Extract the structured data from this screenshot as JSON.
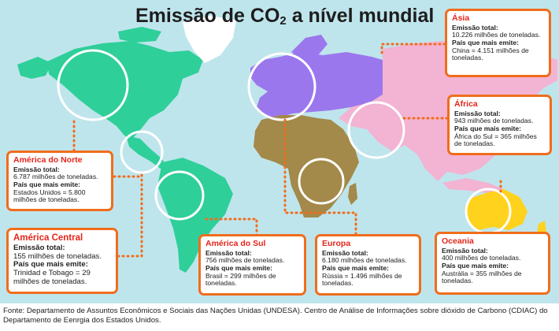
{
  "title": {
    "main": "Emissão de CO",
    "sub": "2",
    "rest": " a nível mundial"
  },
  "regions": {
    "asia": {
      "name": "Ásia",
      "total_label": "Emissão total:",
      "total_value": "10.226 milhões de toneladas.",
      "top_label": "País que mais emite:",
      "top_value": "China = 4.151 milhões de toneladas.",
      "color": "#f3b3d3"
    },
    "africa": {
      "name": "África",
      "total_label": "Emissão total:",
      "total_value": "943 milhões de toneladas.",
      "top_label": "País que mais emite:",
      "top_value": "África do Sul = 365 milhões de toneladas.",
      "color": "#a3894a"
    },
    "north_america": {
      "name": "América do Norte",
      "total_label": "Emissão total:",
      "total_value": "6.787 milhões de toneladas.",
      "top_label": "País que mais emite:",
      "top_value": "Estados Unidos = 5.800 milhões de toneladas.",
      "color": "#2fcf9a"
    },
    "central_america": {
      "name": "América Central",
      "total_label": "Emissão total:",
      "total_value": "155 milhões de toneladas.",
      "top_label": "País que mais emite:",
      "top_value": "Trinidad e Tobago = 29 milhões de toneladas.",
      "color": "#2fcf9a"
    },
    "south_america": {
      "name": "América do Sul",
      "total_label": "Emissão total:",
      "total_value": "756 milhões de toneladas.",
      "top_label": "País que mais emite:",
      "top_value": "Brasil = 299 milhões de toneladas.",
      "color": "#2fcf9a"
    },
    "europe": {
      "name": "Europa",
      "total_label": "Emissão total:",
      "total_value": "6.180 milhões de toneladas.",
      "top_label": "País que mais emite:",
      "top_value": "Rússia = 1.496 milhões de toneladas.",
      "color": "#9b77ee"
    },
    "oceania": {
      "name": "Oceania",
      "total_label": "Emissão total:",
      "total_value": "400 milhões de toneladas.",
      "top_label": "País que mais emite:",
      "top_value": "Austrália = 355 milhões de toneladas.",
      "color": "#ffd21e"
    }
  },
  "colors": {
    "ocean": "#bfe5ec",
    "box_border": "#f06d1c",
    "region_name": "#e4251a",
    "greenland": "#ffffff"
  },
  "footer": "Fonte: Departamento de Assuntos Econômicos e Sociais das Nações Unidas (UNDESA). Centro de Análise de Informações sobre dióxido de Carbono (CDIAC) do Departamento de Eenrgia dos Estados Unidos."
}
